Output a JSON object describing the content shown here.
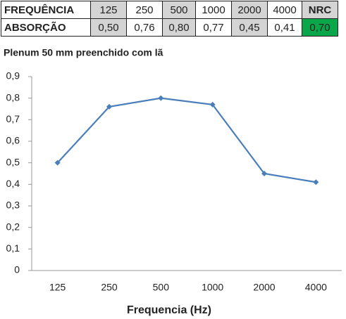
{
  "table": {
    "rows": [
      [
        "FREQUÊNCIA",
        "125",
        "250",
        "500",
        "1000",
        "2000",
        "4000",
        "NRC"
      ],
      [
        "ABSORÇÃO",
        "0,50",
        "0,76",
        "0,80",
        "0,77",
        "0,45",
        "0,41",
        "0,70"
      ]
    ]
  },
  "chart_data": {
    "type": "line",
    "title": "Plenum 50 mm preenchido com lã",
    "x_label": "Frequencia (Hz)",
    "categories": [
      "125",
      "250",
      "500",
      "1000",
      "2000",
      "4000"
    ],
    "values": [
      0.5,
      0.76,
      0.8,
      0.77,
      0.45,
      0.41
    ],
    "color": "#4a7ebb",
    "ylim": [
      0,
      0.9
    ],
    "yticks": [
      0,
      {
        "value": 0.1,
        "label": "0,1"
      },
      {
        "value": 0.2,
        "label": "0,2"
      },
      {
        "value": 0.3,
        "label": "0,3"
      },
      {
        "value": 0.4,
        "label": "0,4"
      },
      {
        "value": 0.5,
        "label": "0,5"
      },
      {
        "value": 0.6,
        "label": "0,6"
      },
      {
        "value": 0.7,
        "label": "0,7"
      },
      {
        "value": 0.8,
        "label": "0,8"
      },
      {
        "value": 0.9,
        "label": "0,9"
      }
    ],
    "grid": false
  }
}
